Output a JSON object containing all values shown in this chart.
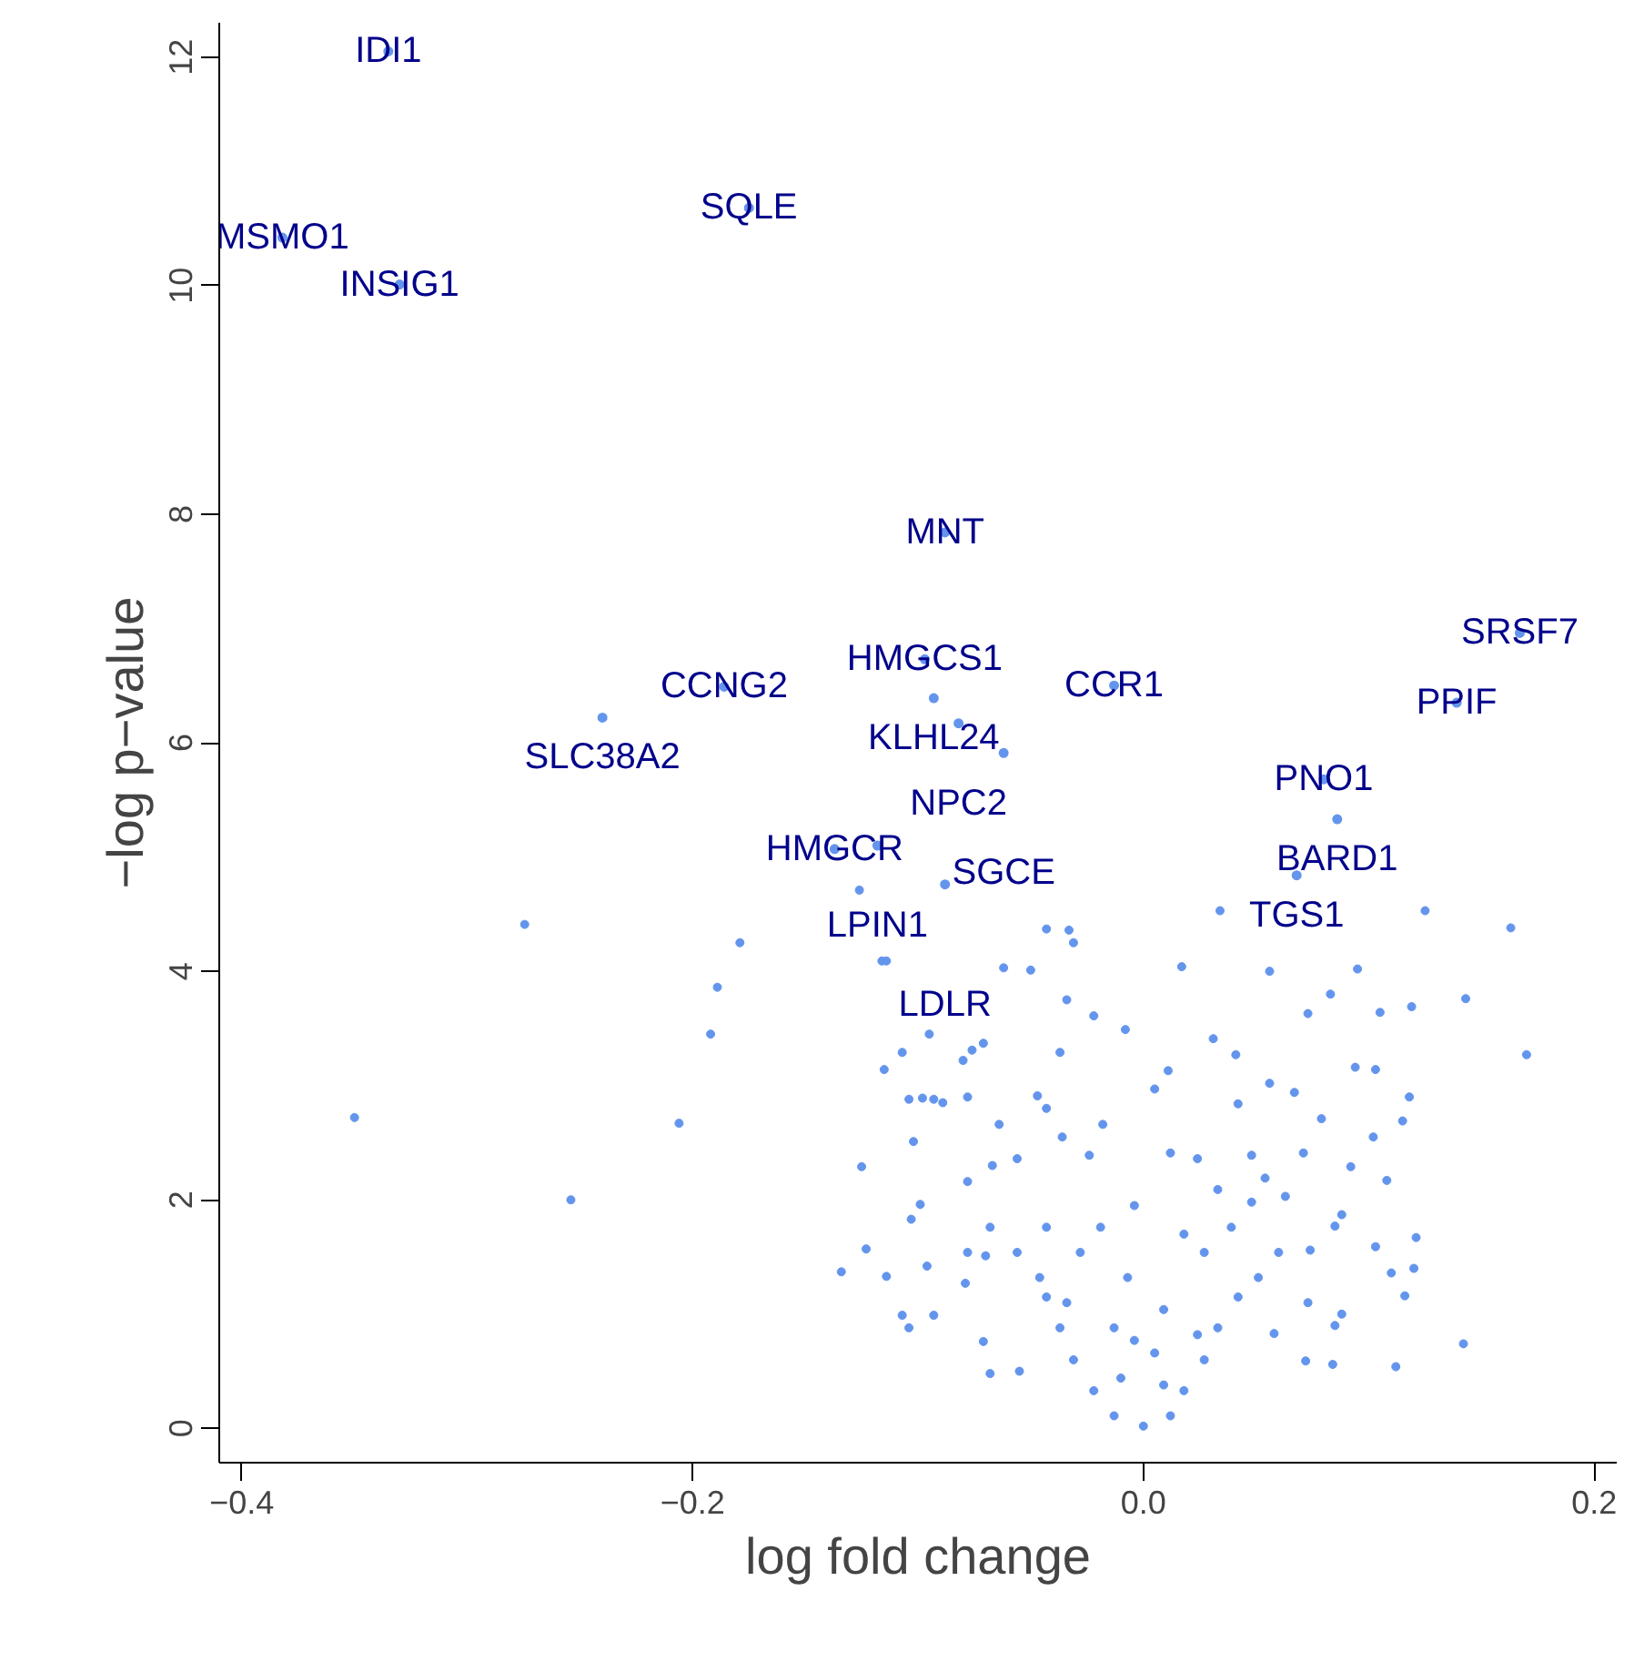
{
  "chart_data": {
    "type": "scatter",
    "xlabel": "log fold change",
    "ylabel": "−log p−value",
    "marker": "circle",
    "xlim": [
      -0.41,
      0.21
    ],
    "ylim": [
      -0.3,
      12.3
    ],
    "xticks": [
      {
        "value": -0.4,
        "label": "−0.4"
      },
      {
        "value": -0.2,
        "label": "−0.2"
      },
      {
        "value": 0.0,
        "label": "0.0"
      },
      {
        "value": 0.2,
        "label": "0.2"
      }
    ],
    "yticks": [
      0,
      2,
      4,
      6,
      8,
      10,
      12
    ],
    "series": [
      {
        "color": "#6495ed",
        "x": [
          -0.2745,
          -0.179,
          -0.116,
          -0.114,
          -0.189,
          -0.192,
          -0.095,
          -0.107,
          -0.076,
          -0.08,
          -0.115,
          -0.35,
          -0.206,
          -0.104,
          -0.098,
          -0.093,
          -0.089,
          -0.078,
          -0.102,
          -0.125,
          -0.078,
          -0.254,
          -0.099,
          -0.103,
          -0.123,
          -0.078,
          -0.096,
          -0.134,
          -0.114,
          -0.079,
          -0.107,
          -0.093,
          -0.104,
          -0.126,
          0.034,
          0.125,
          0.163,
          -0.043,
          -0.033,
          -0.031,
          -0.062,
          -0.05,
          0.017,
          0.056,
          0.095,
          0.143,
          0.17,
          -0.034,
          -0.022,
          -0.008,
          -0.071,
          0.083,
          0.105,
          0.119,
          0.073,
          0.031,
          0.041,
          0.094,
          0.103,
          -0.037,
          0.011,
          0.118,
          0.115,
          0.102,
          -0.047,
          -0.043,
          -0.064,
          0.005,
          0.056,
          0.067,
          0.042,
          0.079,
          -0.018,
          -0.036,
          0.108,
          0.092,
          0.071,
          0.048,
          0.024,
          0.012,
          -0.067,
          -0.056,
          -0.024,
          -0.004,
          0.121,
          0.103,
          0.12,
          0.11,
          0.116,
          0.088,
          0.085,
          0.142,
          0.112,
          0.084,
          0.072,
          -0.068,
          -0.055,
          -0.071,
          -0.068,
          -0.07,
          0.088,
          0.085,
          0.074,
          0.073,
          0.058,
          0.0,
          -0.013,
          0.012,
          -0.022,
          0.018,
          -0.031,
          0.027,
          -0.037,
          0.033,
          -0.043,
          0.042,
          -0.046,
          0.051,
          -0.007,
          0.009,
          -0.004,
          0.005,
          -0.01,
          0.009,
          -0.028,
          0.027,
          0.06,
          -0.056,
          -0.019,
          0.039,
          0.018,
          -0.034,
          0.024,
          -0.013,
          0.048,
          0.033,
          0.063,
          -0.043,
          0.054
        ],
        "values": [
          4.41,
          4.25,
          4.09,
          4.09,
          3.86,
          3.45,
          3.45,
          3.29,
          3.31,
          3.22,
          3.14,
          2.72,
          2.67,
          2.88,
          2.89,
          2.88,
          2.85,
          2.9,
          2.51,
          2.29,
          2.16,
          2.0,
          1.96,
          1.83,
          1.57,
          1.54,
          1.42,
          1.37,
          1.33,
          1.27,
          0.99,
          0.99,
          0.88,
          4.71,
          4.53,
          4.53,
          4.38,
          4.37,
          4.36,
          4.25,
          4.03,
          4.01,
          4.04,
          4.0,
          4.02,
          3.76,
          3.27,
          3.75,
          3.61,
          3.49,
          3.37,
          3.8,
          3.64,
          3.69,
          3.63,
          3.41,
          3.27,
          3.16,
          3.14,
          3.29,
          3.13,
          2.9,
          2.69,
          2.55,
          2.91,
          2.8,
          2.66,
          2.97,
          3.02,
          2.94,
          2.84,
          2.71,
          2.66,
          2.55,
          2.17,
          2.29,
          2.41,
          2.39,
          2.36,
          2.41,
          2.3,
          2.36,
          2.39,
          1.95,
          1.67,
          1.59,
          1.4,
          1.36,
          1.16,
          1.0,
          0.9,
          0.74,
          0.54,
          0.56,
          0.59,
          0.48,
          0.5,
          0.76,
          1.76,
          1.51,
          1.87,
          1.77,
          1.56,
          1.1,
          0.83,
          0.02,
          0.11,
          0.11,
          0.33,
          0.33,
          0.6,
          0.6,
          0.88,
          0.88,
          1.15,
          1.15,
          1.32,
          1.32,
          1.32,
          1.04,
          0.77,
          0.66,
          0.44,
          0.38,
          1.54,
          1.54,
          1.54,
          1.54,
          1.76,
          1.76,
          1.7,
          1.1,
          0.82,
          0.88,
          1.98,
          2.09,
          2.03,
          1.76,
          2.19
        ]
      }
    ],
    "annotations": [
      {
        "text": "IDI1",
        "x": -0.335,
        "y": 12.05
      },
      {
        "text": "MSMO1",
        "x": -0.382,
        "y": 10.42
      },
      {
        "text": "INSIG1",
        "x": -0.33,
        "y": 10.01
      },
      {
        "text": "SQLE",
        "x": -0.175,
        "y": 10.68
      },
      {
        "text": "MNT",
        "x": -0.088,
        "y": 7.84
      },
      {
        "text": "SRSF7",
        "x": 0.167,
        "y": 6.96
      },
      {
        "text": "PPIF",
        "x": 0.139,
        "y": 6.35
      },
      {
        "text": "HMGCS1",
        "x": -0.097,
        "y": 6.73
      },
      {
        "text": "CCR1",
        "x": -0.013,
        "y": 6.5
      },
      {
        "text": "CCNG2",
        "x": -0.186,
        "y": 6.49
      },
      {
        "text": "KLHL24",
        "x": -0.093,
        "y": 6.39
      },
      {
        "text": "SLC38A2",
        "x": -0.24,
        "y": 6.22
      },
      {
        "text": "NPC2",
        "x": -0.082,
        "y": 6.17
      },
      {
        "text": "SGCE",
        "x": -0.062,
        "y": 5.91
      },
      {
        "text": "PNO1",
        "x": 0.08,
        "y": 5.68
      },
      {
        "text": "BARD1",
        "x": 0.086,
        "y": 5.33
      },
      {
        "text": "HMGCR",
        "x": -0.137,
        "y": 5.07
      },
      {
        "text": "LPIN1",
        "x": -0.118,
        "y": 5.1
      },
      {
        "text": "LDLR",
        "x": -0.088,
        "y": 4.76
      },
      {
        "text": "TGS1",
        "x": 0.068,
        "y": 4.84
      }
    ]
  }
}
